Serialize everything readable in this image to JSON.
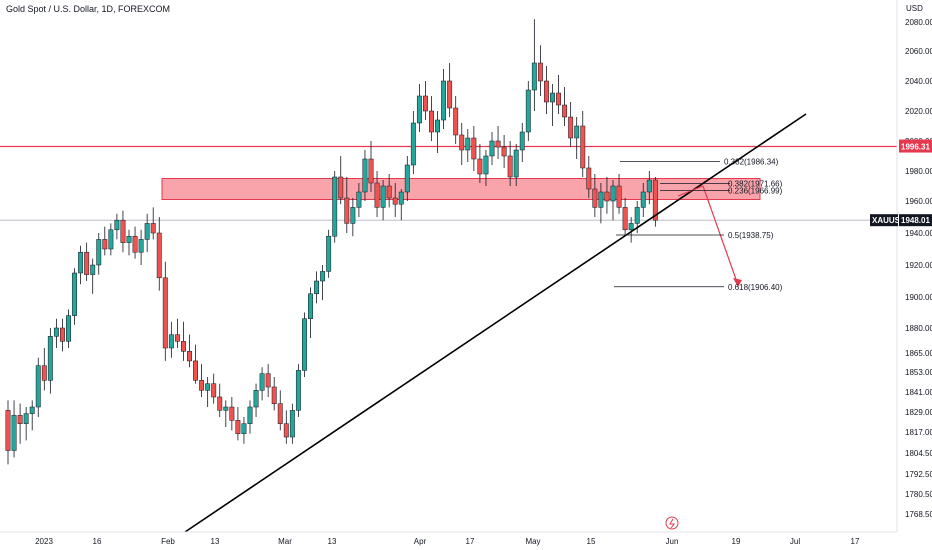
{
  "title": "Gold Spot / U.S. Dollar, 1D, FOREXCOM",
  "chart_data": {
    "type": "candlestick",
    "symbol": "XAUUSD",
    "last_price": "1948.01",
    "axis_unit": "USD",
    "y_ticks": [
      "2080.00",
      "2060.00",
      "2040.00",
      "2020.00",
      "2000.00",
      "1980.00",
      "1960.00",
      "1940.00",
      "1920.00",
      "1900.00",
      "1880.00",
      "1865.00",
      "1853.00",
      "1841.00",
      "1829.00",
      "1817.00",
      "1804.50",
      "1792.50",
      "1780.50",
      "1768.50"
    ],
    "x_ticks": [
      "2023",
      "16",
      "Feb",
      "13",
      "Mar",
      "13",
      "Apr",
      "17",
      "May",
      "15",
      "Jun",
      "19",
      "Jul",
      "17"
    ],
    "resistance_line": {
      "price": "1996.31"
    },
    "resistance_zone": {
      "top": 1975,
      "bottom": 1961
    },
    "fib_levels": [
      {
        "label": "0.382(1986.34)",
        "price": 1986.34
      },
      {
        "label": "0.382(1971.66)",
        "price": 1971.66
      },
      {
        "label": "0.236(1966.99)",
        "price": 1966.99
      },
      {
        "label": "0.5(1938.75)",
        "price": 1938.75
      },
      {
        "label": "0.618(1906.40)",
        "price": 1906.4
      }
    ],
    "candles": [
      [
        1830,
        1836,
        1798,
        1806
      ],
      [
        1806,
        1836,
        1802,
        1827
      ],
      [
        1827,
        1834,
        1810,
        1822
      ],
      [
        1822,
        1832,
        1812,
        1828
      ],
      [
        1828,
        1836,
        1818,
        1832
      ],
      [
        1832,
        1862,
        1826,
        1857
      ],
      [
        1857,
        1868,
        1842,
        1848
      ],
      [
        1848,
        1880,
        1840,
        1875
      ],
      [
        1875,
        1886,
        1868,
        1880
      ],
      [
        1880,
        1886,
        1866,
        1872
      ],
      [
        1872,
        1892,
        1868,
        1888
      ],
      [
        1888,
        1918,
        1882,
        1915
      ],
      [
        1915,
        1932,
        1908,
        1928
      ],
      [
        1928,
        1934,
        1910,
        1914
      ],
      [
        1914,
        1924,
        1902,
        1920
      ],
      [
        1920,
        1940,
        1914,
        1936
      ],
      [
        1936,
        1944,
        1926,
        1930
      ],
      [
        1930,
        1946,
        1926,
        1942
      ],
      [
        1942,
        1952,
        1936,
        1948
      ],
      [
        1948,
        1954,
        1928,
        1934
      ],
      [
        1934,
        1942,
        1926,
        1938
      ],
      [
        1938,
        1944,
        1924,
        1928
      ],
      [
        1928,
        1942,
        1920,
        1936
      ],
      [
        1936,
        1952,
        1928,
        1946
      ],
      [
        1946,
        1956,
        1936,
        1940
      ],
      [
        1940,
        1950,
        1904,
        1912
      ],
      [
        1912,
        1922,
        1860,
        1868
      ],
      [
        1868,
        1884,
        1862,
        1876
      ],
      [
        1876,
        1886,
        1868,
        1872
      ],
      [
        1872,
        1884,
        1860,
        1866
      ],
      [
        1866,
        1876,
        1856,
        1860
      ],
      [
        1860,
        1870,
        1846,
        1848
      ],
      [
        1848,
        1858,
        1838,
        1842
      ],
      [
        1842,
        1850,
        1832,
        1846
      ],
      [
        1846,
        1852,
        1834,
        1838
      ],
      [
        1838,
        1846,
        1826,
        1830
      ],
      [
        1830,
        1836,
        1820,
        1832
      ],
      [
        1832,
        1838,
        1818,
        1824
      ],
      [
        1824,
        1832,
        1812,
        1816
      ],
      [
        1816,
        1826,
        1810,
        1822
      ],
      [
        1822,
        1836,
        1816,
        1832
      ],
      [
        1832,
        1846,
        1826,
        1842
      ],
      [
        1842,
        1856,
        1836,
        1852
      ],
      [
        1852,
        1858,
        1838,
        1844
      ],
      [
        1844,
        1850,
        1830,
        1834
      ],
      [
        1834,
        1842,
        1818,
        1822
      ],
      [
        1822,
        1830,
        1810,
        1814
      ],
      [
        1814,
        1834,
        1810,
        1830
      ],
      [
        1830,
        1858,
        1826,
        1854
      ],
      [
        1854,
        1890,
        1850,
        1886
      ],
      [
        1886,
        1906,
        1874,
        1902
      ],
      [
        1902,
        1916,
        1896,
        1910
      ],
      [
        1910,
        1920,
        1898,
        1916
      ],
      [
        1916,
        1942,
        1912,
        1938
      ],
      [
        1938,
        1980,
        1934,
        1976
      ],
      [
        1976,
        1990,
        1958,
        1962
      ],
      [
        1962,
        1976,
        1940,
        1946
      ],
      [
        1946,
        1962,
        1938,
        1956
      ],
      [
        1956,
        1972,
        1950,
        1966
      ],
      [
        1966,
        1994,
        1960,
        1988
      ],
      [
        1988,
        2000,
        1966,
        1972
      ],
      [
        1972,
        1980,
        1950,
        1956
      ],
      [
        1956,
        1974,
        1948,
        1970
      ],
      [
        1970,
        1978,
        1956,
        1962
      ],
      [
        1962,
        1972,
        1950,
        1958
      ],
      [
        1958,
        1968,
        1948,
        1966
      ],
      [
        1966,
        1990,
        1960,
        1984
      ],
      [
        1984,
        2020,
        1978,
        2012
      ],
      [
        2012,
        2038,
        2006,
        2030
      ],
      [
        2030,
        2040,
        2014,
        2020
      ],
      [
        2020,
        2030,
        2000,
        2006
      ],
      [
        2006,
        2020,
        1992,
        2014
      ],
      [
        2014,
        2048,
        2008,
        2040
      ],
      [
        2040,
        2052,
        2016,
        2022
      ],
      [
        2022,
        2030,
        1998,
        2004
      ],
      [
        2004,
        2012,
        1984,
        1994
      ],
      [
        1994,
        2008,
        1986,
        2002
      ],
      [
        2002,
        2010,
        1980,
        1988
      ],
      [
        1988,
        1998,
        1972,
        1978
      ],
      [
        1978,
        1994,
        1970,
        1990
      ],
      [
        1990,
        2006,
        1984,
        2000
      ],
      [
        2000,
        2010,
        1988,
        1996
      ],
      [
        1996,
        2004,
        1982,
        1990
      ],
      [
        1990,
        2000,
        1970,
        1976
      ],
      [
        1976,
        1998,
        1970,
        1994
      ],
      [
        1994,
        2012,
        1986,
        2006
      ],
      [
        2006,
        2040,
        2000,
        2034
      ],
      [
        2034,
        2082,
        2020,
        2052
      ],
      [
        2052,
        2064,
        2030,
        2040
      ],
      [
        2040,
        2050,
        2018,
        2026
      ],
      [
        2026,
        2038,
        2010,
        2032
      ],
      [
        2032,
        2044,
        2018,
        2024
      ],
      [
        2024,
        2036,
        2010,
        2016
      ],
      [
        2016,
        2026,
        1996,
        2002
      ],
      [
        2002,
        2016,
        1988,
        2010
      ],
      [
        2010,
        2020,
        1976,
        1982
      ],
      [
        1982,
        1990,
        1962,
        1968
      ],
      [
        1968,
        1978,
        1950,
        1956
      ],
      [
        1956,
        1972,
        1946,
        1966
      ],
      [
        1966,
        1976,
        1952,
        1960
      ],
      [
        1960,
        1974,
        1948,
        1970
      ],
      [
        1970,
        1978,
        1952,
        1956
      ],
      [
        1956,
        1962,
        1938,
        1942
      ],
      [
        1942,
        1950,
        1934,
        1946
      ],
      [
        1946,
        1960,
        1940,
        1956
      ],
      [
        1956,
        1972,
        1950,
        1966
      ],
      [
        1966,
        1980,
        1958,
        1974
      ],
      [
        1974,
        1976,
        1944,
        1948
      ]
    ]
  }
}
